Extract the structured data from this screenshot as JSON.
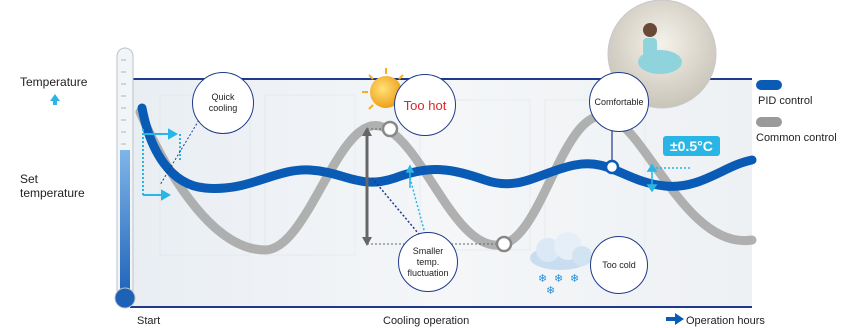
{
  "axis": {
    "y_label": "Temperature",
    "set_temp_label_line1": "Set",
    "set_temp_label_line2": "temperature",
    "x_start": "Start",
    "x_middle": "Cooling operation",
    "x_end": "Operation hours"
  },
  "legend": {
    "pid_label": "PID control",
    "common_label": "Common control",
    "pid_color": "#0a5bb5",
    "common_color": "#9a9a9a"
  },
  "callouts": {
    "quick_cooling_line1": "Quick",
    "quick_cooling_line2": "cooling",
    "too_hot": "Too hot",
    "comfortable": "Comfortable",
    "smaller_line1": "Smaller",
    "smaller_line2": "temp.",
    "smaller_line3": "fluctuation",
    "too_cold": "Too cold",
    "tolerance": "±0.5°C"
  },
  "icons": {
    "sun": "sun-icon",
    "snow_cloud": "snow-cloud-icon",
    "thermometer": "thermometer-icon",
    "arrow_up": "arrow-up-icon",
    "arrow_right": "arrow-right-icon"
  },
  "colors": {
    "too_hot_text": "#e0262b",
    "accent": "#29b6e6",
    "frame": "#1f3a8a"
  }
}
